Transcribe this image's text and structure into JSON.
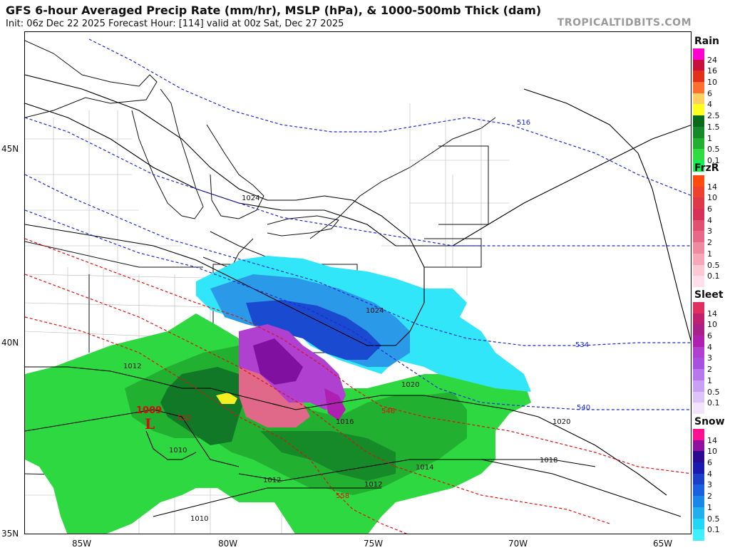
{
  "header": {
    "title": "GFS 6-hour Averaged Precip Rate (mm/hr), MSLP (hPa), & 1000-500mb Thick (dam)",
    "subtitle": "Init: 06z Dec 22 2025   Forecast Hour: [114]   valid at 00z Sat, Dec 27 2025",
    "brand": "TROPICALTIDBITS.COM"
  },
  "axes": {
    "lat_labels": [
      "45N",
      "40N",
      "35N"
    ],
    "lon_labels": [
      "85W",
      "80W",
      "75W",
      "70W",
      "65W"
    ]
  },
  "low_center": {
    "pressure": "1009",
    "symbol": "L",
    "color": "#d01010"
  },
  "isobar_labels": [
    "1024",
    "1024",
    "1012",
    "1020",
    "1020",
    "1018",
    "1016",
    "1014",
    "1012",
    "1012",
    "1010",
    "1010"
  ],
  "thickness_labels": {
    "blue": [
      "516",
      "534",
      "540"
    ],
    "red": [
      "546",
      "552",
      "558"
    ]
  },
  "colors": {
    "isobar": "#000000",
    "thickness_cold": "#1a2ad8",
    "thickness_warm": "#e01010",
    "border": "#9a9a9a"
  },
  "legends": [
    {
      "title": "Rain",
      "levels": [
        "24",
        "16",
        "10",
        "6",
        "4",
        "2.5",
        "1.5",
        "1",
        "0.5",
        "0.1"
      ],
      "colors": [
        "#ff00d0",
        "#c8103c",
        "#e43018",
        "#ff7030",
        "#ffd060",
        "#ffff20",
        "#0a6a1a",
        "#168a28",
        "#22b030",
        "#30dd40",
        "#10f050"
      ]
    },
    {
      "title": "FrzR",
      "levels": [
        "14",
        "10",
        "6",
        "4",
        "3",
        "2",
        "1",
        "0.5",
        "0.1"
      ],
      "colors": [
        "#ff4a10",
        "#f04030",
        "#e03848",
        "#d83058",
        "#e05070",
        "#e86888",
        "#f08aa0",
        "#f7a8b8",
        "#fcc8d4",
        "#ffe0ea"
      ]
    },
    {
      "title": "Sleet",
      "levels": [
        "14",
        "10",
        "6",
        "4",
        "3",
        "2",
        "1",
        "0.5",
        "0.1"
      ],
      "colors": [
        "#e03060",
        "#c02070",
        "#a82088",
        "#b020b0",
        "#b040d0",
        "#a850e0",
        "#b878ec",
        "#c8a0f4",
        "#dcc4f8",
        "#f2e4fc"
      ]
    },
    {
      "title": "Snow",
      "levels": [
        "14",
        "10",
        "6",
        "4",
        "3",
        "2",
        "1",
        "0.5",
        "0.1"
      ],
      "colors": [
        "#ff1090",
        "#9010a0",
        "#2a0a90",
        "#1a1ab0",
        "#1a40c8",
        "#1a60e0",
        "#1888e8",
        "#20b0ee",
        "#20d8f6",
        "#40f0ff"
      ]
    }
  ]
}
